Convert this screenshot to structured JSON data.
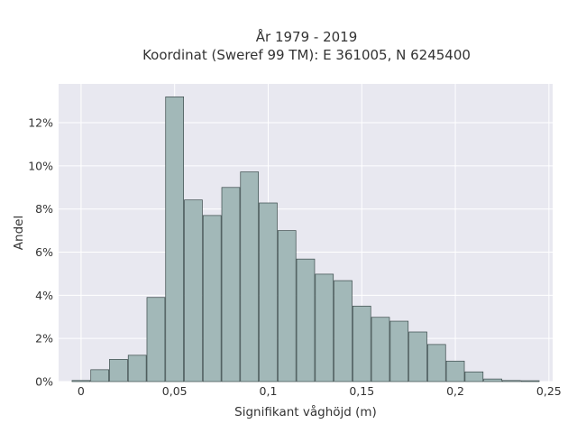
{
  "chart_data": {
    "type": "bar",
    "title_line1": "År 1979 - 2019",
    "title_line2": "Koordinat (Sweref 99 TM): E 361005, N 6245400",
    "xlabel": "Signifikant våghöjd (m)",
    "ylabel": "Andel",
    "xlim": [
      -0.012,
      0.252
    ],
    "ylim": [
      0,
      0.138
    ],
    "x_ticks": [
      0,
      0.05,
      0.1,
      0.15,
      0.2,
      0.25
    ],
    "x_tick_labels": [
      "0",
      "0,05",
      "0,1",
      "0,15",
      "0,2",
      "0,25"
    ],
    "y_ticks": [
      0,
      0.02,
      0.04,
      0.06,
      0.08,
      0.1,
      0.12
    ],
    "y_tick_labels": [
      "0%",
      "2%",
      "4%",
      "6%",
      "8%",
      "10%",
      "12%"
    ],
    "bar_width": 0.0048,
    "grid": true,
    "colors": {
      "plot_bg": "#e8e8f0",
      "bar_fill": "#a2b8b8",
      "bar_edge": "#3a4a4a",
      "grid": "#ffffff"
    },
    "x": [
      0,
      0.01,
      0.02,
      0.03,
      0.04,
      0.05,
      0.06,
      0.07,
      0.08,
      0.09,
      0.1,
      0.11,
      0.12,
      0.13,
      0.14,
      0.15,
      0.16,
      0.17,
      0.18,
      0.19,
      0.2,
      0.21,
      0.22,
      0.23,
      0.24
    ],
    "values": [
      0.0005,
      0.0055,
      0.0103,
      0.0122,
      0.039,
      0.132,
      0.0842,
      0.077,
      0.09,
      0.0972,
      0.0828,
      0.07,
      0.0568,
      0.0498,
      0.0468,
      0.035,
      0.0298,
      0.028,
      0.023,
      0.0172,
      0.0095,
      0.0045,
      0.0012,
      0.0005,
      0.0004
    ]
  }
}
